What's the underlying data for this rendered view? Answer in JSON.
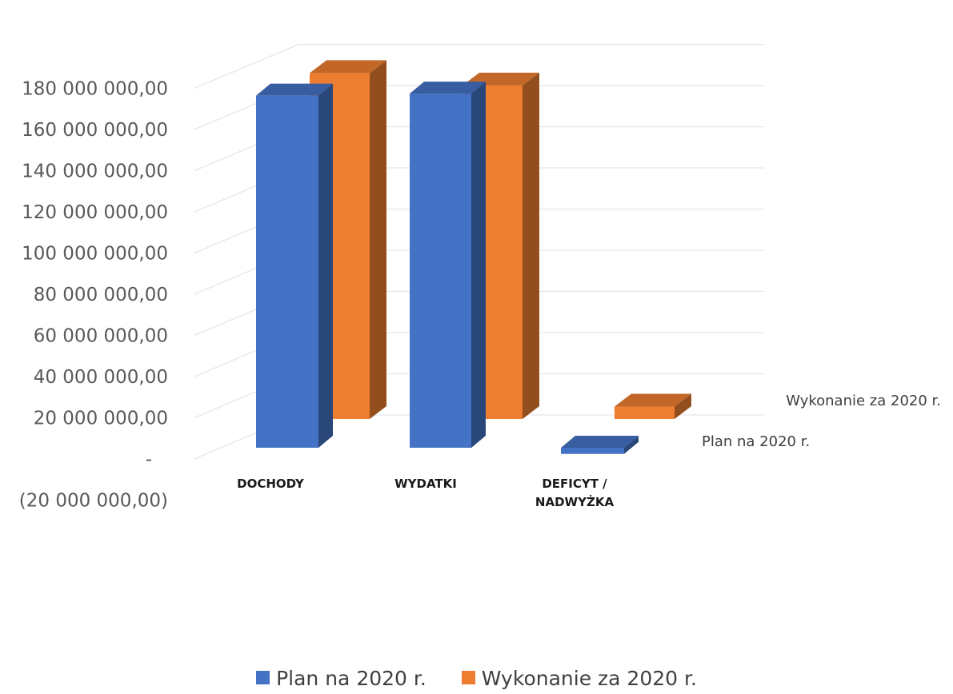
{
  "chart_data": {
    "type": "bar",
    "categories": [
      "DOCHODY",
      "WYDATKI",
      "DEFICYT / NADWYŻKA"
    ],
    "series": [
      {
        "name": "Plan na 2020 r.",
        "values": [
          171000000,
          172000000,
          -3000000
        ]
      },
      {
        "name": "Wykonanie za 2020 r.",
        "values": [
          168000000,
          162000000,
          6000000
        ]
      }
    ],
    "y_ticks": [
      "180 000 000,00",
      "160 000 000,00",
      "140 000 000,00",
      "120 000 000,00",
      "100 000 000,00",
      "80 000 000,00",
      "60 000 000,00",
      "40 000 000,00",
      "20 000 000,00",
      "-",
      "(20 000 000,00)"
    ],
    "ylim": [
      -20000000,
      180000000
    ],
    "grid": true,
    "legend_position": "bottom",
    "colors": {
      "plan": "#4472C4",
      "wykonanie": "#ED7D31"
    }
  },
  "legend": {
    "plan_label": "Plan na 2020 r.",
    "wykonanie_label": "Wykonanie za 2020 r."
  }
}
